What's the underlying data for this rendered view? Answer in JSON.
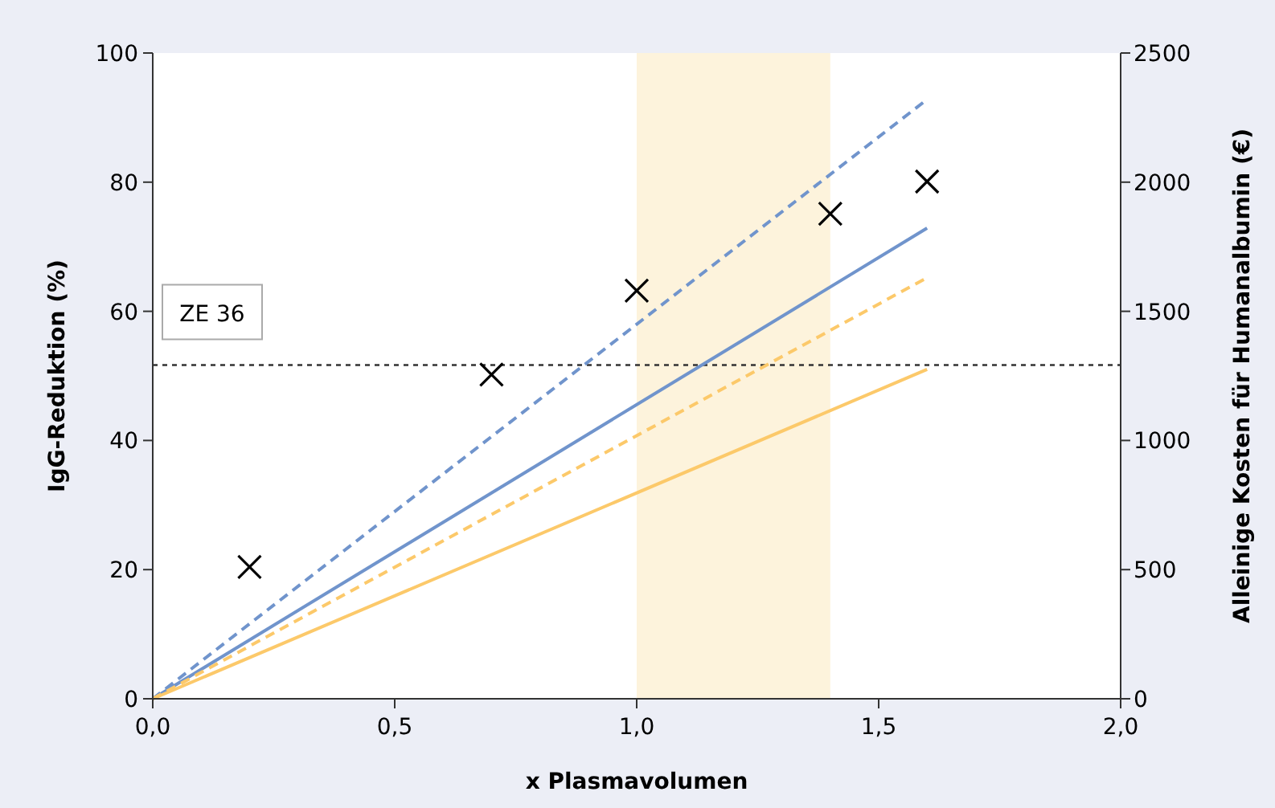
{
  "chart_data": {
    "type": "line",
    "xlabel": "x Plasmavolumen",
    "ylabel": "IgG-Reduktion (%)",
    "y2label": "Alleinige Kosten für Humanalbumin (€)",
    "xlim": [
      0,
      2
    ],
    "xticks": [
      {
        "value": 0,
        "label": "0,0"
      },
      {
        "value": 0.5,
        "label": "0,5"
      },
      {
        "value": 1,
        "label": "1,0"
      },
      {
        "value": 1.5,
        "label": "1,5"
      },
      {
        "value": 2,
        "label": "2,0"
      }
    ],
    "ylim": [
      0,
      100
    ],
    "yticks": [
      0,
      20,
      40,
      60,
      80,
      100
    ],
    "y2lim": [
      0,
      2500
    ],
    "y2ticks": [
      0,
      500,
      1000,
      1500,
      2000,
      2500
    ],
    "grid": false,
    "series": [
      {
        "type": "scatter",
        "marker": "cross",
        "color": "#000000",
        "x": [
          0.2,
          0.7,
          1.0,
          1.4,
          1.6
        ],
        "values": [
          20.4,
          50.2,
          63.2,
          75.1,
          80.1
        ]
      },
      {
        "axis": "y2",
        "line_style": "dashed",
        "color": "#7094cc",
        "x": [
          0,
          1.6
        ],
        "values": [
          0,
          2320
        ]
      },
      {
        "axis": "y2",
        "line_style": "solid",
        "color": "#7094cc",
        "x": [
          0,
          1.6
        ],
        "values": [
          0,
          1822
        ]
      },
      {
        "axis": "y2",
        "line_style": "dashed",
        "color": "#fcc96a",
        "x": [
          0,
          1.6
        ],
        "values": [
          0,
          1630
        ]
      },
      {
        "axis": "y2",
        "line_style": "solid",
        "color": "#fcc96a",
        "x": [
          0,
          1.6
        ],
        "values": [
          0,
          1275
        ]
      }
    ],
    "ref_lines": [
      {
        "axis": "y2",
        "value": 1292,
        "label": "ZE 36",
        "line_style": "dotted",
        "color": "#333333"
      }
    ],
    "bands": [
      {
        "axis": "x",
        "from": 1.0,
        "to": 1.4,
        "color": "#fdf3dc"
      }
    ]
  }
}
